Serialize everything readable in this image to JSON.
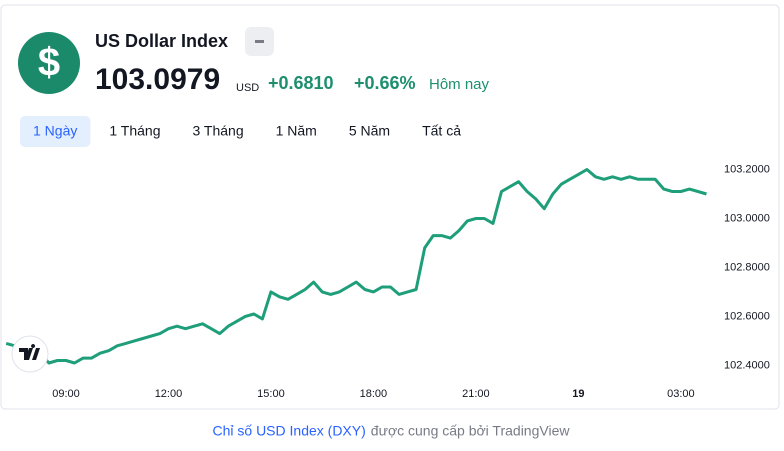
{
  "header": {
    "icon": "$",
    "title": "US Dollar Index",
    "price": "103.0979",
    "currency": "USD",
    "change": "+0.6810",
    "change_percent": "+0.66%",
    "period": "Hôm nay"
  },
  "tabs": [
    "1 Ngày",
    "1 Tháng",
    "3 Tháng",
    "1 Năm",
    "5 Năm",
    "Tất cả"
  ],
  "chart_data": {
    "type": "line",
    "color": "#1f9e7a",
    "categories": [
      null,
      null,
      null,
      null,
      null,
      null,
      null,
      "09:00",
      null,
      null,
      null,
      null,
      null,
      null,
      null,
      null,
      null,
      null,
      null,
      "12:00",
      null,
      null,
      null,
      null,
      null,
      null,
      null,
      null,
      null,
      null,
      null,
      "15:00",
      null,
      null,
      null,
      null,
      null,
      null,
      null,
      null,
      null,
      null,
      null,
      "18:00",
      null,
      null,
      null,
      null,
      null,
      null,
      null,
      null,
      null,
      null,
      null,
      "21:00",
      null,
      null,
      null,
      null,
      null,
      null,
      null,
      null,
      null,
      null,
      null,
      "19",
      null,
      null,
      null,
      null,
      null,
      null,
      null,
      null,
      null,
      null,
      null,
      "03:00",
      null,
      null,
      null
    ],
    "values": [
      102.49,
      102.48,
      102.47,
      102.46,
      102.45,
      102.41,
      102.42,
      102.42,
      102.41,
      102.43,
      102.43,
      102.45,
      102.46,
      102.48,
      102.49,
      102.5,
      102.51,
      102.52,
      102.53,
      102.55,
      102.56,
      102.55,
      102.56,
      102.57,
      102.55,
      102.53,
      102.56,
      102.58,
      102.6,
      102.61,
      102.59,
      102.7,
      102.68,
      102.67,
      102.69,
      102.71,
      102.74,
      102.7,
      102.69,
      102.7,
      102.72,
      102.74,
      102.71,
      102.7,
      102.72,
      102.72,
      102.69,
      102.7,
      102.71,
      102.88,
      102.93,
      102.93,
      102.92,
      102.95,
      102.99,
      103.0,
      103.0,
      102.98,
      103.11,
      103.13,
      103.15,
      103.11,
      103.08,
      103.04,
      103.1,
      103.14,
      103.16,
      103.18,
      103.2,
      103.17,
      103.16,
      103.17,
      103.16,
      103.17,
      103.16,
      103.16,
      103.16,
      103.12,
      103.11,
      103.11,
      103.12,
      103.11,
      103.1
    ],
    "ylim": [
      102.32,
      103.3
    ],
    "yticks": [
      {
        "value": 102.4,
        "label": "102.4000"
      },
      {
        "value": 102.6,
        "label": "102.6000"
      },
      {
        "value": 102.8,
        "label": "102.8000"
      },
      {
        "value": 103.0,
        "label": "103.0000"
      },
      {
        "value": 103.2,
        "label": "103.2000"
      }
    ]
  },
  "footer": {
    "link": "Chỉ số USD Index (DXY)",
    "text": "được cung cấp bởi TradingView"
  }
}
